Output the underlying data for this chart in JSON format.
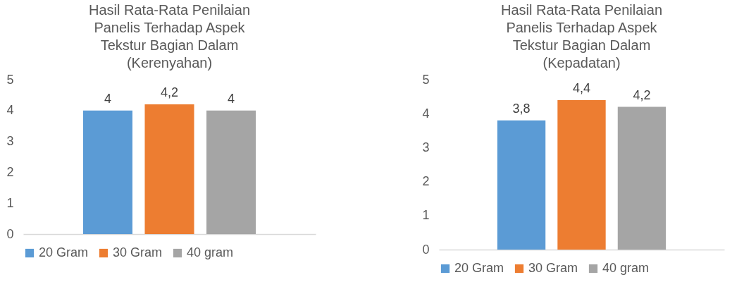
{
  "chart_data": [
    {
      "type": "bar",
      "title": "Hasil Rata-Rata Penilaian Panelis Terhadap Aspek Tekstur Bagian Dalam (Kerenyahan)",
      "categories": [
        null
      ],
      "series": [
        {
          "name": "20 Gram",
          "color": "#5b9bd5",
          "values": [
            4
          ],
          "value_labels": [
            "4"
          ]
        },
        {
          "name": "30 Gram",
          "color": "#ed7d31",
          "values": [
            4.2
          ],
          "value_labels": [
            "4,2"
          ]
        },
        {
          "name": "40 gram",
          "color": "#a5a5a5",
          "values": [
            4
          ],
          "value_labels": [
            "4"
          ]
        }
      ],
      "ylim": [
        0,
        5
      ],
      "yticks": [
        0,
        1,
        2,
        3,
        4,
        5
      ],
      "grid": false,
      "legend": "bottom"
    },
    {
      "type": "bar",
      "title": "Hasil Rata-Rata Penilaian Panelis Terhadap Aspek Tekstur Bagian Dalam (Kepadatan)",
      "categories": [
        null
      ],
      "series": [
        {
          "name": "20 Gram",
          "color": "#5b9bd5",
          "values": [
            3.8
          ],
          "value_labels": [
            "3,8"
          ]
        },
        {
          "name": "30 Gram",
          "color": "#ed7d31",
          "values": [
            4.4
          ],
          "value_labels": [
            "4,4"
          ]
        },
        {
          "name": "40 gram",
          "color": "#a5a5a5",
          "values": [
            4.2
          ],
          "value_labels": [
            "4,2"
          ]
        }
      ],
      "ylim": [
        0,
        5
      ],
      "yticks": [
        0,
        1,
        2,
        3,
        4,
        5
      ],
      "grid": false,
      "legend": "bottom"
    }
  ]
}
